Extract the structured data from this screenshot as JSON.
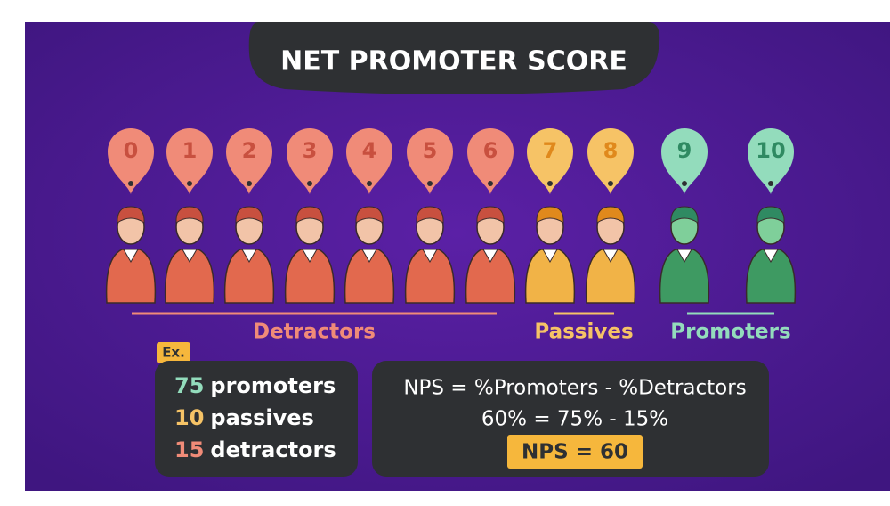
{
  "title": "NET PROMOTER SCORE",
  "groups": [
    {
      "name": "Detractors",
      "color": "#f08b78",
      "numbers": [
        "0",
        "1",
        "2",
        "3",
        "4",
        "5",
        "6"
      ]
    },
    {
      "name": "Passives",
      "color": "#f6c366",
      "numbers": [
        "7",
        "8"
      ]
    },
    {
      "name": "Promoters",
      "color": "#93dcbc",
      "numbers": [
        "9",
        "10"
      ]
    }
  ],
  "example": {
    "tag": "Ex.",
    "lines": [
      {
        "count": "75",
        "label": "promoters"
      },
      {
        "count": "10",
        "label": "passives"
      },
      {
        "count": "15",
        "label": "detractors"
      }
    ]
  },
  "formula": {
    "lines": [
      "NPS = %Promoters - %Detractors",
      "60% = 75% - 15%"
    ],
    "result": "NPS = 60"
  }
}
